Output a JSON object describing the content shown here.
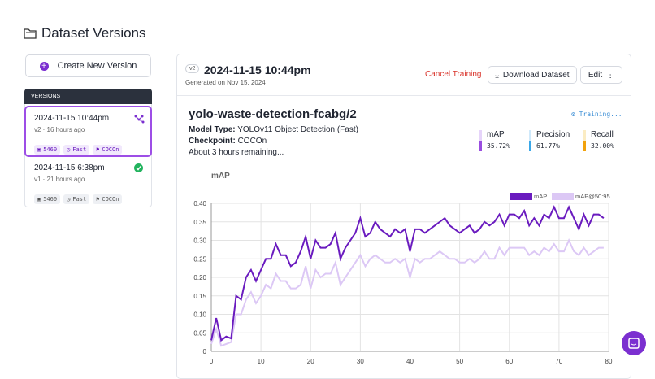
{
  "header": {
    "title": "Dataset Versions"
  },
  "sidebar": {
    "create_button": "Create New Version",
    "versions_label": "VERSIONS",
    "versions": [
      {
        "title": "2024-11-15 10:44pm",
        "meta": "v2 · 16 hours ago",
        "tags": [
          "5460",
          "Fast",
          "COCOn"
        ]
      },
      {
        "title": "2024-11-15 6:38pm",
        "meta": "v1 · 21 hours ago",
        "tags": [
          "5460",
          "Fast",
          "COCOn"
        ]
      }
    ]
  },
  "panel": {
    "badge": "v2",
    "title": "2024-11-15 10:44pm",
    "subtitle": "Generated on Nov 15, 2024",
    "actions": {
      "cancel": "Cancel Training",
      "download": "Download Dataset",
      "edit": "Edit"
    }
  },
  "training": {
    "name": "yolo-waste-detection-fcabg/2",
    "status": "Training...",
    "details": [
      {
        "label": "Model Type:",
        "value": "YOLOv11 Object Detection (Fast)"
      },
      {
        "label": "Checkpoint:",
        "value": "COCOn"
      }
    ],
    "eta": "About 3 hours remaining...",
    "stats": [
      {
        "label": "mAP",
        "value": "35.72%"
      },
      {
        "label": "Precision",
        "value": "61.77%"
      },
      {
        "label": "Recall",
        "value": "32.00%"
      }
    ]
  },
  "chart_data": {
    "type": "line",
    "title": "mAP",
    "x": [
      0,
      1,
      2,
      3,
      4,
      5,
      6,
      7,
      8,
      9,
      10,
      11,
      12,
      13,
      14,
      15,
      16,
      17,
      18,
      19,
      20,
      21,
      22,
      23,
      24,
      25,
      26,
      27,
      28,
      29,
      30,
      31,
      32,
      33,
      34,
      35,
      36,
      37,
      38,
      39,
      40,
      41,
      42,
      43,
      44,
      45,
      46,
      47,
      48,
      49,
      50,
      51,
      52,
      53,
      54,
      55,
      56,
      57,
      58,
      59,
      60,
      61,
      62,
      63,
      64,
      65,
      66,
      67,
      68,
      69,
      70,
      71,
      72,
      73,
      74,
      75,
      76,
      77,
      78,
      79
    ],
    "series": [
      {
        "name": "mAP",
        "color": "#6a1bbf",
        "values": [
          0.03,
          0.09,
          0.03,
          0.04,
          0.035,
          0.15,
          0.14,
          0.2,
          0.22,
          0.19,
          0.22,
          0.25,
          0.25,
          0.29,
          0.26,
          0.26,
          0.23,
          0.24,
          0.27,
          0.31,
          0.25,
          0.3,
          0.28,
          0.28,
          0.29,
          0.32,
          0.25,
          0.28,
          0.3,
          0.32,
          0.36,
          0.31,
          0.32,
          0.35,
          0.33,
          0.32,
          0.31,
          0.33,
          0.32,
          0.33,
          0.27,
          0.33,
          0.33,
          0.32,
          0.33,
          0.34,
          0.35,
          0.36,
          0.34,
          0.33,
          0.32,
          0.33,
          0.34,
          0.32,
          0.33,
          0.35,
          0.34,
          0.35,
          0.37,
          0.34,
          0.37,
          0.37,
          0.36,
          0.38,
          0.34,
          0.36,
          0.34,
          0.37,
          0.36,
          0.39,
          0.36,
          0.36,
          0.39,
          0.36,
          0.33,
          0.37,
          0.34,
          0.37,
          0.37,
          0.36
        ]
      },
      {
        "name": "mAP@50:95",
        "color": "#dcc8f5",
        "values": [
          0.02,
          0.06,
          0.015,
          0.02,
          0.025,
          0.1,
          0.1,
          0.14,
          0.16,
          0.13,
          0.15,
          0.18,
          0.17,
          0.21,
          0.19,
          0.19,
          0.17,
          0.17,
          0.18,
          0.23,
          0.17,
          0.22,
          0.2,
          0.21,
          0.21,
          0.24,
          0.18,
          0.2,
          0.22,
          0.24,
          0.26,
          0.23,
          0.25,
          0.26,
          0.25,
          0.24,
          0.24,
          0.25,
          0.24,
          0.25,
          0.2,
          0.25,
          0.24,
          0.25,
          0.25,
          0.26,
          0.27,
          0.26,
          0.25,
          0.25,
          0.24,
          0.24,
          0.25,
          0.24,
          0.25,
          0.27,
          0.25,
          0.25,
          0.28,
          0.26,
          0.28,
          0.28,
          0.28,
          0.28,
          0.26,
          0.27,
          0.26,
          0.28,
          0.27,
          0.29,
          0.27,
          0.27,
          0.3,
          0.27,
          0.26,
          0.28,
          0.26,
          0.27,
          0.28,
          0.28
        ]
      }
    ],
    "xlim": [
      0,
      80
    ],
    "xticks": [
      0,
      10,
      20,
      30,
      40,
      50,
      60,
      70,
      80
    ],
    "ylim": [
      0,
      0.4
    ],
    "yticks": [
      0,
      0.05,
      {
        "value": 0.1,
        "label": "0.10"
      },
      0.15,
      {
        "value": 0.2,
        "label": "0.20"
      },
      0.25,
      {
        "value": 0.3,
        "label": "0.30"
      },
      0.35,
      {
        "value": 0.4,
        "label": "0.40"
      }
    ],
    "grid": true
  }
}
